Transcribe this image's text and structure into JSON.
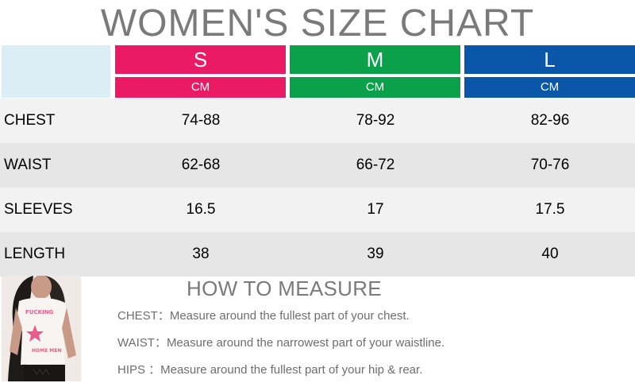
{
  "title": "WOMEN'S SIZE CHART",
  "colors": {
    "S": "#eb1a64",
    "M": "#0aa14a",
    "L": "#0a56a8",
    "header_blank": "#dceef5",
    "row_light": "#f2f2f2",
    "row_dark": "#e6e6e6"
  },
  "sizes": [
    {
      "label": "S",
      "unit": "CM"
    },
    {
      "label": "M",
      "unit": "CM"
    },
    {
      "label": "L",
      "unit": "CM"
    }
  ],
  "rows": [
    {
      "label": "CHEST",
      "values": [
        "74-88",
        "78-92",
        "82-96"
      ]
    },
    {
      "label": "WAIST",
      "values": [
        "62-68",
        "66-72",
        "70-76"
      ]
    },
    {
      "label": "SLEEVES",
      "values": [
        "16.5",
        "17",
        "17.5"
      ]
    },
    {
      "label": "LENGTH",
      "values": [
        "38",
        "39",
        "40"
      ]
    }
  ],
  "how_to_measure": {
    "title": "HOW TO MEASURE",
    "items": [
      "CHEST：Measure around the fullest part of your chest.",
      "WAIST：Measure around the narrowest part of your waistline.",
      "HIPS   ：Measure around the fullest part of your hip & rear."
    ]
  },
  "photo": {
    "shirt_text_top": "FUCKING",
    "shirt_text_bottom": "HOME MEN"
  }
}
